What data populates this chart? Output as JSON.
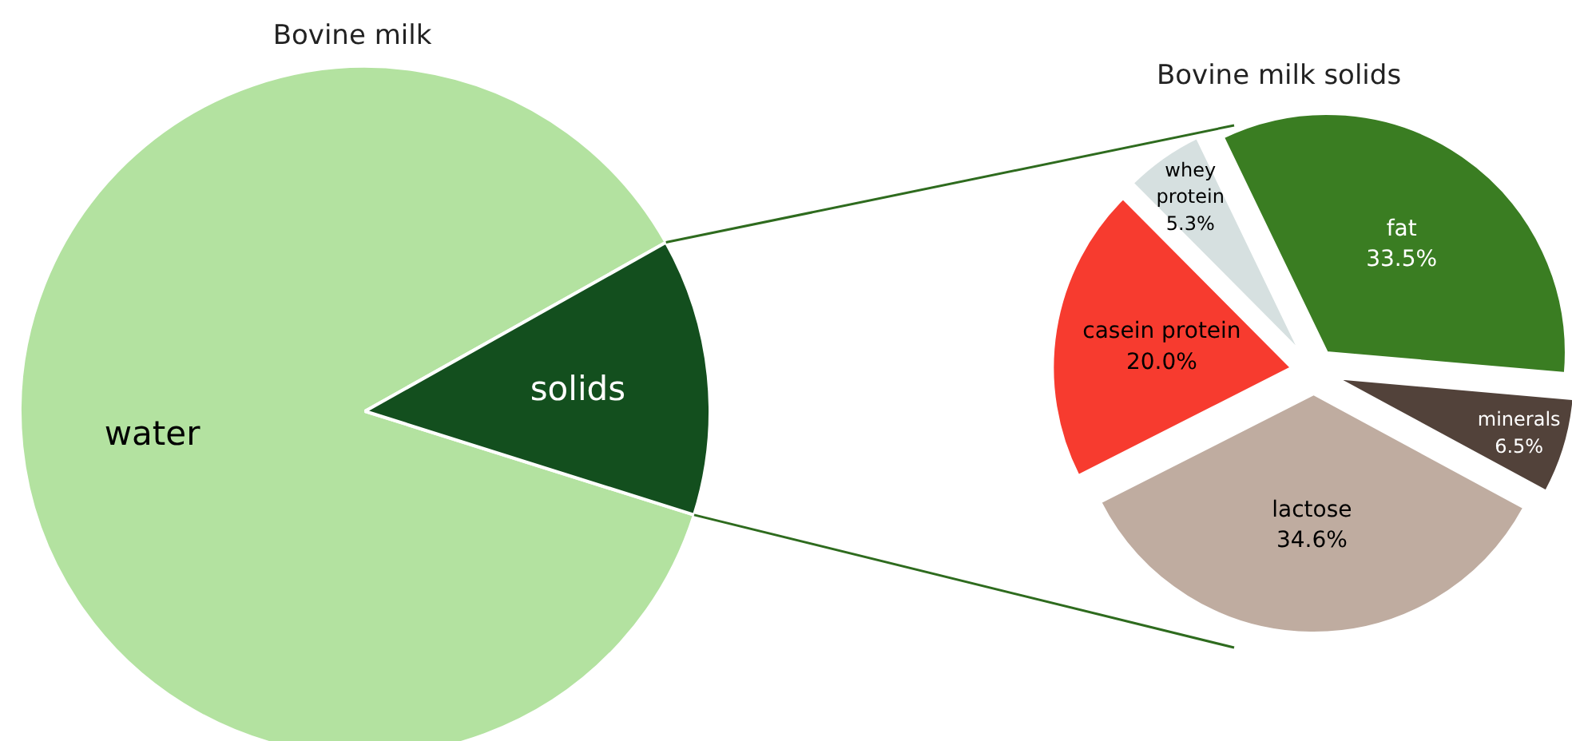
{
  "chart_data": [
    {
      "type": "pie",
      "title": "Bovine milk",
      "categories": [
        "water",
        "solids"
      ],
      "values": [
        87,
        13
      ],
      "colors": [
        "#b3e2a0",
        "#134f1e"
      ]
    },
    {
      "type": "pie",
      "title": "Bovine milk solids",
      "categories": [
        "fat",
        "whey protein",
        "casein protein",
        "lactose",
        "minerals"
      ],
      "values": [
        33.5,
        5.3,
        20.0,
        34.6,
        6.5
      ],
      "colors": [
        "#3a7d22",
        "#d6e0e0",
        "#f73b2f",
        "#bfaca0",
        "#52423a"
      ],
      "value_labels": [
        "33.5%",
        "5.3%",
        "20.0%",
        "34.6%",
        "6.5%"
      ]
    }
  ]
}
